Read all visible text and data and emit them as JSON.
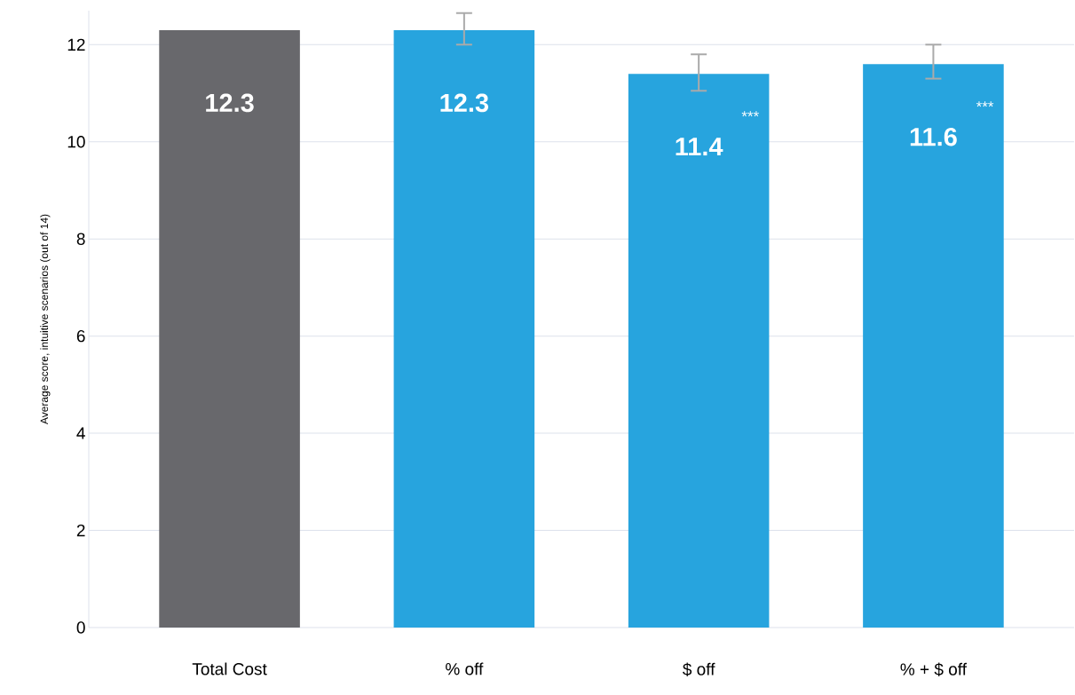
{
  "chart_data": {
    "type": "bar",
    "ylabel": "Average score, intuitive scenarios (out of 14)",
    "categories": [
      "Total Cost",
      "% off",
      "$ off",
      "% + $ off"
    ],
    "values": [
      12.3,
      12.3,
      11.4,
      11.6
    ],
    "colors": [
      "#68686c",
      "#27a4de",
      "#27a4de",
      "#27a4de"
    ],
    "errors": [
      null,
      [
        12.0,
        12.65
      ],
      [
        11.05,
        11.8
      ],
      [
        11.3,
        12.0
      ]
    ],
    "data_labels": true,
    "ylim": [
      0,
      12.7
    ],
    "yticks": [
      0,
      2,
      4,
      6,
      8,
      10,
      12
    ],
    "grid": "y",
    "annotations": [
      "***",
      "***"
    ]
  }
}
